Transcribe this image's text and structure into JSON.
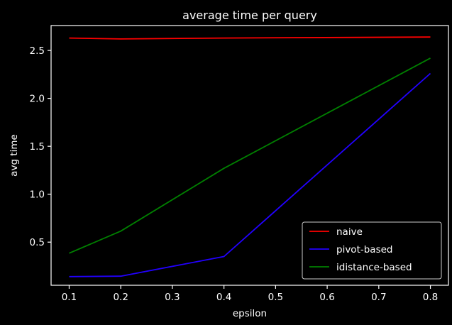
{
  "chart_data": {
    "type": "line",
    "title": "average time per query",
    "xlabel": "epsilon",
    "ylabel": "avg time",
    "x": [
      0.1,
      0.2,
      0.4,
      0.8
    ],
    "xlim": [
      0.065,
      0.835
    ],
    "ylim": [
      0.05,
      2.76
    ],
    "xticks": [
      0.1,
      0.2,
      0.3,
      0.4,
      0.5,
      0.6,
      0.7,
      0.8
    ],
    "xtick_labels": [
      "0.1",
      "0.2",
      "0.3",
      "0.4",
      "0.5",
      "0.6",
      "0.7",
      "0.8"
    ],
    "yticks": [
      0.5,
      1.0,
      1.5,
      2.0,
      2.5
    ],
    "ytick_labels": [
      "0.5",
      "1.0",
      "1.5",
      "2.0",
      "2.5"
    ],
    "grid": false,
    "legend_position": "bottom-right",
    "series": [
      {
        "name": "naive",
        "color": "#ff0000",
        "values": [
          2.63,
          2.62,
          2.63,
          2.64
        ]
      },
      {
        "name": "pivot-based",
        "color": "#2200ff",
        "values": [
          0.14,
          0.145,
          0.35,
          2.26
        ]
      },
      {
        "name": "idistance-based",
        "color": "#008000",
        "values": [
          0.385,
          0.615,
          1.27,
          2.42
        ]
      }
    ]
  }
}
